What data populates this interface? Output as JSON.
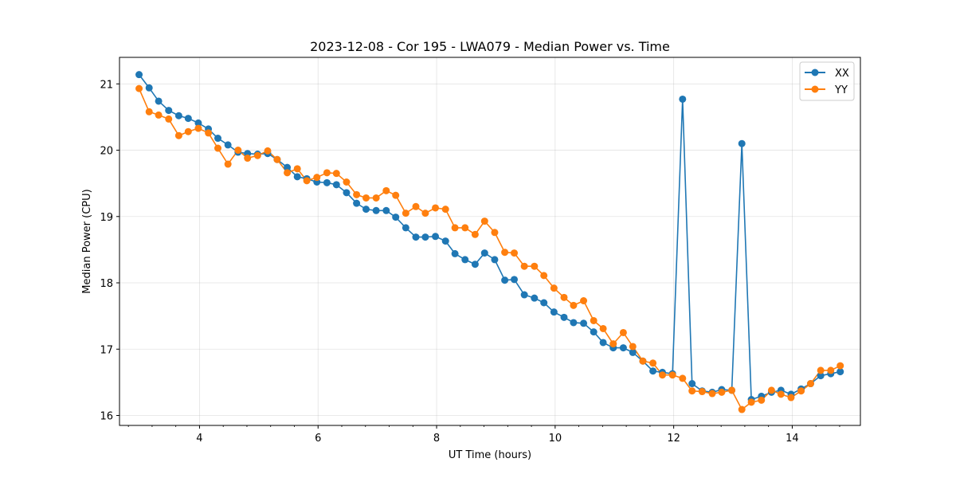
{
  "chart_data": {
    "type": "line",
    "title": "2023-12-08 - Cor 195 - LWA079 - Median Power vs. Time",
    "xlabel": "UT Time (hours)",
    "ylabel": "Median Power (CPU)",
    "xlim": [
      2.65,
      15.15
    ],
    "ylim": [
      15.85,
      21.4
    ],
    "grid": true,
    "legend_position": "top-right",
    "x_ticks": [
      4,
      6,
      8,
      10,
      12,
      14
    ],
    "y_ticks": [
      16,
      17,
      18,
      19,
      20,
      21
    ],
    "x_tick_labels": [
      "4",
      "6",
      "8",
      "10",
      "12",
      "14"
    ],
    "y_tick_labels": [
      "16",
      "17",
      "18",
      "19",
      "20",
      "21"
    ],
    "x": [
      2.98,
      3.15,
      3.31,
      3.48,
      3.65,
      3.81,
      3.98,
      4.15,
      4.31,
      4.48,
      4.65,
      4.81,
      4.98,
      5.15,
      5.31,
      5.48,
      5.65,
      5.81,
      5.98,
      6.15,
      6.31,
      6.48,
      6.65,
      6.81,
      6.98,
      7.15,
      7.31,
      7.48,
      7.65,
      7.81,
      7.98,
      8.15,
      8.31,
      8.48,
      8.65,
      8.81,
      8.98,
      9.15,
      9.31,
      9.48,
      9.65,
      9.81,
      9.98,
      10.15,
      10.31,
      10.48,
      10.65,
      10.81,
      10.98,
      11.15,
      11.31,
      11.48,
      11.65,
      11.81,
      11.98,
      12.15,
      12.31,
      12.48,
      12.65,
      12.81,
      12.98,
      13.15,
      13.31,
      13.48,
      13.65,
      13.81,
      13.98,
      14.15,
      14.31,
      14.48,
      14.65,
      14.81
    ],
    "series": [
      {
        "name": "XX",
        "color": "#1f77b4",
        "values": [
          21.14,
          20.94,
          20.74,
          20.6,
          20.52,
          20.48,
          20.41,
          20.32,
          20.18,
          20.08,
          19.97,
          19.95,
          19.94,
          19.95,
          19.86,
          19.74,
          19.6,
          19.57,
          19.52,
          19.51,
          19.48,
          19.36,
          19.2,
          19.11,
          19.09,
          19.09,
          18.99,
          18.83,
          18.69,
          18.69,
          18.7,
          18.63,
          18.44,
          18.35,
          18.28,
          18.45,
          18.35,
          18.04,
          18.05,
          17.82,
          17.77,
          17.7,
          17.56,
          17.48,
          17.4,
          17.39,
          17.26,
          17.1,
          17.02,
          17.02,
          16.95,
          16.82,
          16.67,
          16.65,
          16.63,
          20.77,
          16.48,
          16.37,
          16.35,
          16.39,
          16.38,
          20.1,
          16.24,
          16.29,
          16.35,
          16.38,
          16.32,
          16.4,
          16.48,
          16.6,
          16.63,
          16.66
        ]
      },
      {
        "name": "YY",
        "color": "#ff7f0e",
        "values": [
          20.93,
          20.58,
          20.53,
          20.47,
          20.22,
          20.28,
          20.33,
          20.26,
          20.03,
          19.79,
          20.0,
          19.88,
          19.92,
          19.99,
          19.86,
          19.66,
          19.72,
          19.54,
          19.59,
          19.66,
          19.65,
          19.52,
          19.33,
          19.28,
          19.28,
          19.39,
          19.32,
          19.05,
          19.15,
          19.05,
          19.13,
          19.11,
          18.83,
          18.83,
          18.73,
          18.93,
          18.76,
          18.46,
          18.45,
          18.25,
          18.25,
          18.11,
          17.92,
          17.78,
          17.66,
          17.73,
          17.43,
          17.31,
          17.08,
          17.25,
          17.04,
          16.82,
          16.79,
          16.61,
          16.61,
          16.56,
          16.37,
          16.36,
          16.33,
          16.35,
          16.38,
          16.09,
          16.2,
          16.23,
          16.38,
          16.32,
          16.27,
          16.37,
          16.48,
          16.68,
          16.68,
          16.75
        ]
      }
    ]
  }
}
